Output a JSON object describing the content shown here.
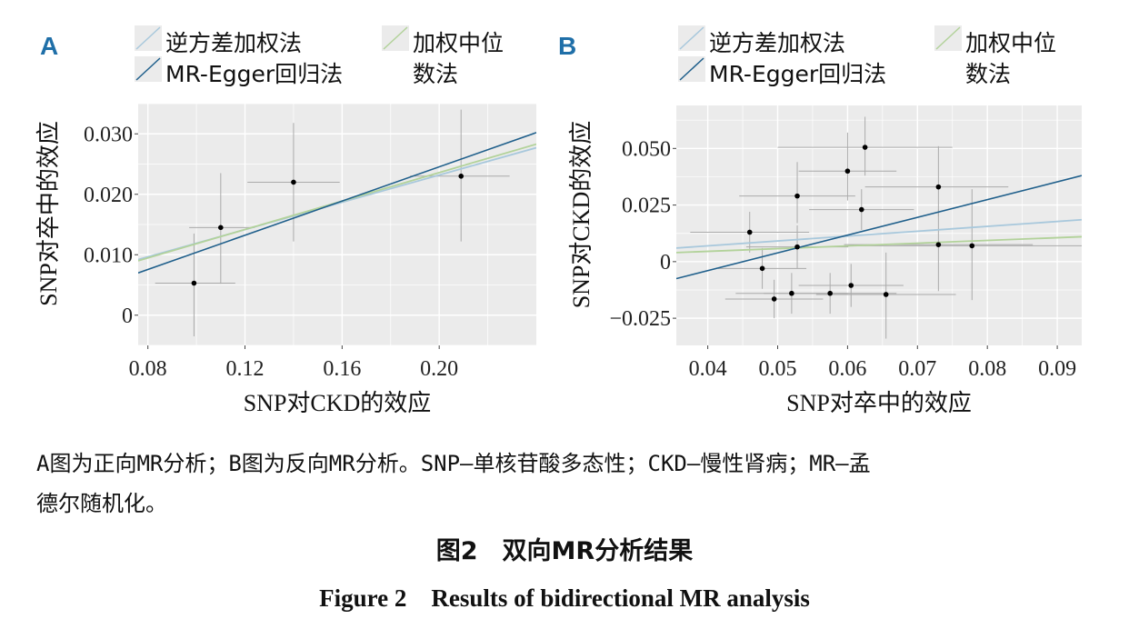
{
  "colors": {
    "panel_bg": "#ebebeb",
    "grid": "#ffffff",
    "ivw": "#a8c8dc",
    "egger": "#1f5f8b",
    "median": "#b2d29a",
    "errorbar": "#aaaaaa",
    "point": "#000000",
    "panel_letter": "#1f6fa8"
  },
  "legend": {
    "ivw": "逆方差加权法",
    "egger": "MR-Egger回归法",
    "median_line1": "加权中位",
    "median_line2": "数法"
  },
  "chart_data": [
    {
      "panel": "A",
      "type": "scatter",
      "xlabel": "SNP对CKD的效应",
      "ylabel": "SNP对卒中的效应",
      "xlim": [
        0.076,
        0.24
      ],
      "ylim": [
        -0.005,
        0.035
      ],
      "xticks": [
        0.08,
        0.12,
        0.16,
        0.2
      ],
      "xtick_labels": [
        "0.08",
        "0.12",
        "0.16",
        "0.20"
      ],
      "yticks": [
        0,
        0.01,
        0.02,
        0.03
      ],
      "ytick_labels": [
        "0",
        "0.010",
        "0.020",
        "0.030"
      ],
      "points": [
        {
          "x": 0.099,
          "y": 0.0053,
          "xlo": 0.083,
          "xhi": 0.116,
          "ylo": -0.0035,
          "yhi": 0.0135
        },
        {
          "x": 0.11,
          "y": 0.0145,
          "xlo": 0.097,
          "xhi": 0.124,
          "ylo": 0.0052,
          "yhi": 0.0235
        },
        {
          "x": 0.14,
          "y": 0.022,
          "xlo": 0.121,
          "xhi": 0.159,
          "ylo": 0.0122,
          "yhi": 0.0318
        },
        {
          "x": 0.209,
          "y": 0.023,
          "xlo": 0.188,
          "xhi": 0.229,
          "ylo": 0.0122,
          "yhi": 0.034
        }
      ],
      "lines": [
        {
          "method": "ivw",
          "y_at_xmin": 0.0092,
          "y_at_xmax": 0.0277
        },
        {
          "method": "median",
          "y_at_xmin": 0.009,
          "y_at_xmax": 0.0283
        },
        {
          "method": "egger",
          "y_at_xmin": 0.007,
          "y_at_xmax": 0.0302
        }
      ]
    },
    {
      "panel": "B",
      "type": "scatter",
      "xlabel": "SNP对卒中的效应",
      "ylabel": "SNP对CKD的效应",
      "xlim": [
        0.0355,
        0.0935
      ],
      "ylim": [
        -0.037,
        0.069
      ],
      "xticks": [
        0.04,
        0.05,
        0.06,
        0.07,
        0.08,
        0.09
      ],
      "xtick_labels": [
        "0.04",
        "0.05",
        "0.06",
        "0.07",
        "0.08",
        "0.09"
      ],
      "yticks": [
        -0.025,
        0,
        0.025,
        0.05
      ],
      "ytick_labels": [
        "−0.025",
        "0",
        "0.025",
        "0.050"
      ],
      "points": [
        {
          "x": 0.046,
          "y": 0.013,
          "xlo": 0.0375,
          "xhi": 0.0545,
          "ylo": 0.004,
          "yhi": 0.022
        },
        {
          "x": 0.0478,
          "y": -0.003,
          "xlo": 0.0415,
          "xhi": 0.0541,
          "ylo": -0.012,
          "yhi": 0.006
        },
        {
          "x": 0.0495,
          "y": -0.0165,
          "xlo": 0.0425,
          "xhi": 0.0565,
          "ylo": -0.025,
          "yhi": -0.008
        },
        {
          "x": 0.052,
          "y": -0.014,
          "xlo": 0.044,
          "xhi": 0.06,
          "ylo": -0.023,
          "yhi": -0.005
        },
        {
          "x": 0.0528,
          "y": 0.029,
          "xlo": 0.0445,
          "xhi": 0.0611,
          "ylo": 0.017,
          "yhi": 0.044
        },
        {
          "x": 0.0528,
          "y": 0.0065,
          "xlo": 0.0455,
          "xhi": 0.0601,
          "ylo": -0.003,
          "yhi": 0.016
        },
        {
          "x": 0.0575,
          "y": -0.014,
          "xlo": 0.048,
          "xhi": 0.067,
          "ylo": -0.023,
          "yhi": -0.005
        },
        {
          "x": 0.06,
          "y": 0.04,
          "xlo": 0.053,
          "xhi": 0.067,
          "ylo": 0.027,
          "yhi": 0.057
        },
        {
          "x": 0.0605,
          "y": -0.0105,
          "xlo": 0.053,
          "xhi": 0.068,
          "ylo": -0.02,
          "yhi": -0.001
        },
        {
          "x": 0.062,
          "y": 0.023,
          "xlo": 0.0545,
          "xhi": 0.0695,
          "ylo": 0.014,
          "yhi": 0.032
        },
        {
          "x": 0.0625,
          "y": 0.0505,
          "xlo": 0.05,
          "xhi": 0.075,
          "ylo": 0.038,
          "yhi": 0.064
        },
        {
          "x": 0.0655,
          "y": -0.0145,
          "xlo": 0.0555,
          "xhi": 0.0755,
          "ylo": -0.034,
          "yhi": 0.004
        },
        {
          "x": 0.073,
          "y": 0.033,
          "xlo": 0.0625,
          "xhi": 0.083,
          "ylo": 0.02,
          "yhi": 0.051
        },
        {
          "x": 0.073,
          "y": 0.0075,
          "xlo": 0.0595,
          "xhi": 0.0865,
          "ylo": -0.013,
          "yhi": 0.023
        },
        {
          "x": 0.0778,
          "y": 0.007,
          "xlo": 0.0615,
          "xhi": 0.0941,
          "ylo": -0.017,
          "yhi": 0.032
        }
      ],
      "lines": [
        {
          "method": "ivw",
          "y_at_xmin": 0.006,
          "y_at_xmax": 0.0185
        },
        {
          "method": "median",
          "y_at_xmin": 0.004,
          "y_at_xmax": 0.011
        },
        {
          "method": "egger",
          "y_at_xmin": -0.0075,
          "y_at_xmax": 0.038
        }
      ]
    }
  ],
  "caption": {
    "note_line1": "A图为正向MR分析；B图为反向MR分析。SNP—单核苷酸多态性；CKD—慢性肾病；MR—孟",
    "note_line2": "德尔随机化。",
    "title_cn": "图2　双向MR分析结果",
    "title_en": "Figure 2　Results of bidirectional MR analysis"
  }
}
